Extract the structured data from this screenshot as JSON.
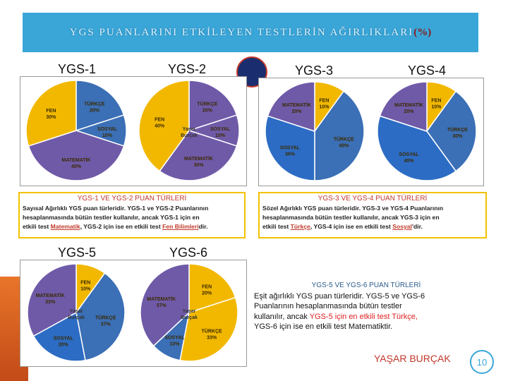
{
  "title": {
    "main": "YGS PUANLARINI ETKİLEYEN TESTLERİN AĞIRLIKLARI",
    "pct": "(%)"
  },
  "labels": {
    "ygs1": "YGS-1",
    "ygs2": "YGS-2",
    "ygs3": "YGS-3",
    "ygs4": "YGS-4",
    "ygs5": "YGS-5",
    "ygs6": "YGS-6"
  },
  "colors": {
    "turkce": "#3b6fb6",
    "fen": "#f2b800",
    "sosyal": "#2c6cc4",
    "matematik": "#6f5aa8"
  },
  "chart_data": [
    {
      "type": "pie",
      "name": "YGS-1",
      "slices": [
        {
          "label": "TÜRKÇE\n20%",
          "value": 20,
          "color": "#3b6fb6"
        },
        {
          "label": "SOSYAL\n10%",
          "value": 10,
          "color": "#3b6fb6"
        },
        {
          "label": "MATEMATİK\n40%",
          "value": 40,
          "color": "#6f5aa8"
        },
        {
          "label": "FEN\n30%",
          "value": 30,
          "color": "#f2b800"
        }
      ]
    },
    {
      "type": "pie",
      "name": "YGS-2",
      "slices": [
        {
          "label": "TÜRKÇE\n20%",
          "value": 20,
          "color": "#6f5aa8"
        },
        {
          "label": "SOSYAL\n10%",
          "value": 10,
          "color": "#6f5aa8"
        },
        {
          "label": "MATEMATİK\n30%",
          "value": 30,
          "color": "#6f5aa8"
        },
        {
          "label": "FEN\n40%",
          "value": 40,
          "color": "#f2b800"
        }
      ]
    },
    {
      "type": "pie",
      "name": "YGS-3",
      "slices": [
        {
          "label": "FEN\n10%",
          "value": 10,
          "color": "#f2b800"
        },
        {
          "label": "TÜRKÇE\n40%",
          "value": 40,
          "color": "#3b6fb6"
        },
        {
          "label": "SOSYAL\n30%",
          "value": 30,
          "color": "#2c6cc4"
        },
        {
          "label": "MATEMATİK\n20%",
          "value": 20,
          "color": "#6f5aa8"
        }
      ]
    },
    {
      "type": "pie",
      "name": "YGS-4",
      "slices": [
        {
          "label": "FEN\n10%",
          "value": 10,
          "color": "#f2b800"
        },
        {
          "label": "TÜRKÇE\n30%",
          "value": 30,
          "color": "#3b6fb6"
        },
        {
          "label": "SOSYAL\n40%",
          "value": 40,
          "color": "#2c6cc4"
        },
        {
          "label": "MATEMATİK\n20%",
          "value": 20,
          "color": "#6f5aa8"
        }
      ]
    },
    {
      "type": "pie",
      "name": "YGS-5",
      "slices": [
        {
          "label": "FEN\n10%",
          "value": 10,
          "color": "#f2b800"
        },
        {
          "label": "TÜRKÇE\n37%",
          "value": 37,
          "color": "#3b6fb6"
        },
        {
          "label": "SOSYAL\n20%",
          "value": 20,
          "color": "#2c6cc4"
        },
        {
          "label": "MATEMATİK\n33%",
          "value": 33,
          "color": "#6f5aa8"
        }
      ]
    },
    {
      "type": "pie",
      "name": "YGS-6",
      "slices": [
        {
          "label": "FEN\n20%",
          "value": 20,
          "color": "#f2b800"
        },
        {
          "label": "TÜRKÇE\n33%",
          "value": 33,
          "color": "#f2b800"
        },
        {
          "label": "SOSYAL\n10%",
          "value": 10,
          "color": "#3b6fb6"
        },
        {
          "label": "MATEMATİK\n37%",
          "value": 37,
          "color": "#6f5aa8"
        }
      ]
    }
  ],
  "panel12": {
    "title": "YGS-1 VE YGS-2 PUAN TÜRLERİ",
    "l1": "Sayısal Ağırlıklı  YGS puan türleridir.  YGS-1 ve YGS-2 Puanlarının",
    "l2": "hesaplanmasında bütün testler kullanılır, ancak YGS-1 için en",
    "l3a": "etkili test ",
    "l3b": "Matematik",
    "l3c": ", YGS-2 için ise en etkili test ",
    "l3d": "Fen Bilimleri",
    "l3e": "dir."
  },
  "panel34": {
    "title": "YGS-3 VE YGS-4 PUAN TÜRLERİ",
    "l1": "Sözel Ağırlıklı  YGS puan türleridir.  YGS-3 ve YGS-4 Puanlarının",
    "l2": "hesaplanmasında bütün testler kullanılır, ancak YGS-3 için en",
    "l3a": "etkili test ",
    "l3b": "Türkçe",
    "l3c": ", YGS-4 için ise en etkili test ",
    "l3d": "Sosyal",
    "l3e": "'dir."
  },
  "panel56": {
    "title": "YGS-5 VE YGS-6 PUAN TÜRLERİ",
    "l1": "Eşit ağırlıklı YGS puan türleridir.  YGS-5 ve YGS-6",
    "l2": "Puanlarının hesaplanmasında bütün testler",
    "l3a": "kullanılır, ancak ",
    "l3b": "YGS-5 için en etkili test Türkçe,",
    "l4": "YGS-6 için ise en etkili test Matematiktir."
  },
  "watermark": "Yaşar\nBurçak",
  "author": "YAŞAR BURÇAK",
  "page": "10"
}
